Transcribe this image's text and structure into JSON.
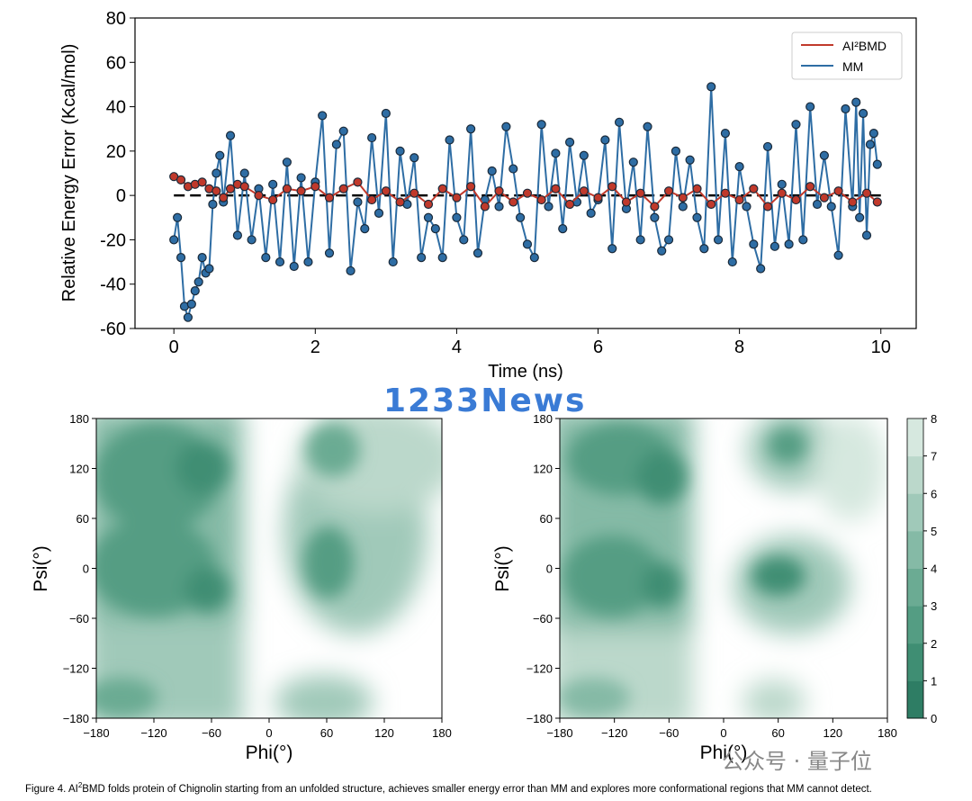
{
  "chart_data": [
    {
      "type": "line",
      "xlabel": "Time (ns)",
      "ylabel": "Relative Energy Error (Kcal/mol)",
      "xlim": [
        -0.55,
        10.5
      ],
      "ylim": [
        -60,
        80
      ],
      "xticks": [
        0,
        2,
        4,
        6,
        8,
        10
      ],
      "yticks": [
        -60,
        -40,
        -20,
        0,
        20,
        40,
        60,
        80
      ],
      "legend": "top-right",
      "reference_line": 0,
      "series": [
        {
          "name": "AI²BMD",
          "color": "#c0392b",
          "x": [
            0,
            0.1,
            0.2,
            0.3,
            0.4,
            0.5,
            0.6,
            0.7,
            0.8,
            0.9,
            1,
            1.2,
            1.4,
            1.6,
            1.8,
            2,
            2.2,
            2.4,
            2.6,
            2.8,
            3,
            3.2,
            3.4,
            3.6,
            3.8,
            4,
            4.2,
            4.4,
            4.6,
            4.8,
            5,
            5.2,
            5.4,
            5.6,
            5.8,
            6,
            6.2,
            6.4,
            6.6,
            6.8,
            7,
            7.2,
            7.4,
            7.6,
            7.8,
            8,
            8.2,
            8.4,
            8.6,
            8.8,
            9,
            9.2,
            9.4,
            9.6,
            9.8,
            9.95
          ],
          "y": [
            8.5,
            7,
            4,
            5,
            6,
            3,
            2,
            -1,
            3,
            5,
            4,
            0,
            -2,
            3,
            2,
            4,
            -1,
            3,
            6,
            -2,
            2,
            -3,
            1,
            -4,
            3,
            -1,
            4,
            -5,
            2,
            -3,
            1,
            -2,
            3,
            -4,
            2,
            -1,
            4,
            -3,
            1,
            -5,
            2,
            -1,
            3,
            -4,
            1,
            -2,
            3,
            -5,
            1,
            -2,
            4,
            -1,
            2,
            -3,
            1,
            -3
          ]
        },
        {
          "name": "MM",
          "color": "#2e6da4",
          "x": [
            0,
            0.05,
            0.1,
            0.15,
            0.2,
            0.25,
            0.3,
            0.35,
            0.4,
            0.45,
            0.5,
            0.55,
            0.6,
            0.65,
            0.7,
            0.8,
            0.9,
            1,
            1.1,
            1.2,
            1.3,
            1.4,
            1.5,
            1.6,
            1.7,
            1.8,
            1.9,
            2,
            2.1,
            2.2,
            2.3,
            2.4,
            2.5,
            2.6,
            2.7,
            2.8,
            2.9,
            3,
            3.1,
            3.2,
            3.3,
            3.4,
            3.5,
            3.6,
            3.7,
            3.8,
            3.9,
            4,
            4.1,
            4.2,
            4.3,
            4.4,
            4.5,
            4.6,
            4.7,
            4.8,
            4.9,
            5,
            5.1,
            5.2,
            5.3,
            5.4,
            5.5,
            5.6,
            5.7,
            5.8,
            5.9,
            6,
            6.1,
            6.2,
            6.3,
            6.4,
            6.5,
            6.6,
            6.7,
            6.8,
            6.9,
            7,
            7.1,
            7.2,
            7.3,
            7.4,
            7.5,
            7.6,
            7.7,
            7.8,
            7.9,
            8,
            8.1,
            8.2,
            8.3,
            8.4,
            8.5,
            8.6,
            8.7,
            8.8,
            8.9,
            9,
            9.1,
            9.2,
            9.3,
            9.4,
            9.5,
            9.6,
            9.65,
            9.7,
            9.75,
            9.8,
            9.85,
            9.9,
            9.95
          ],
          "y": [
            -20,
            -10,
            -28,
            -50,
            -55,
            -49,
            -43,
            -39,
            -28,
            -35,
            -33,
            -4,
            10,
            18,
            -3,
            27,
            -18,
            10,
            -20,
            3,
            -28,
            5,
            -30,
            15,
            -32,
            8,
            -30,
            6,
            36,
            -26,
            23,
            29,
            -34,
            -3,
            -15,
            26,
            -8,
            37,
            -30,
            20,
            -4,
            17,
            -28,
            -10,
            -15,
            -28,
            25,
            -10,
            -20,
            30,
            -26,
            -2,
            11,
            -5,
            31,
            12,
            -10,
            -22,
            -28,
            32,
            -5,
            19,
            -15,
            24,
            -3,
            18,
            -8,
            -2,
            25,
            -24,
            33,
            -6,
            15,
            -20,
            31,
            -10,
            -25,
            -20,
            20,
            -5,
            16,
            -10,
            -24,
            49,
            -20,
            28,
            -30,
            13,
            -5,
            -22,
            -33,
            22,
            -23,
            5,
            -22,
            32,
            -20,
            40,
            -4,
            18,
            -5,
            -27,
            39,
            -5,
            42,
            -10,
            37,
            -18,
            23,
            28,
            14
          ]
        }
      ]
    },
    {
      "type": "heatmap",
      "xlabel": "Phi(°)",
      "ylabel": "Psi(°)",
      "xlim": [
        -180,
        180
      ],
      "ylim": [
        -180,
        180
      ],
      "ticks": [
        -180,
        -120,
        -60,
        0,
        60,
        120,
        180
      ]
    },
    {
      "type": "heatmap",
      "xlabel": "Phi(°)",
      "ylabel": "Psi(°)",
      "xlim": [
        -180,
        180
      ],
      "ylim": [
        -180,
        180
      ],
      "ticks": [
        -180,
        -120,
        -60,
        0,
        60,
        120,
        180
      ],
      "colorbar": {
        "ticks": [
          0,
          1,
          2,
          3,
          4,
          5,
          6,
          7,
          8
        ],
        "colors": [
          "#2e7d64",
          "#3f8e73",
          "#549d83",
          "#6bab93",
          "#85baa6",
          "#a0c9b9",
          "#bbd8cb",
          "#d6e8df",
          "#f1f6f3"
        ]
      }
    }
  ],
  "watermark": "1233News",
  "watermark2": "公众号 · 量子位",
  "caption_pre": "Figure 4. AI",
  "caption_sup": "2",
  "caption_post": "BMD folds protein of Chignolin starting from an unfolded structure, achieves smaller energy error than MM and explores more conformational regions that MM cannot detect."
}
